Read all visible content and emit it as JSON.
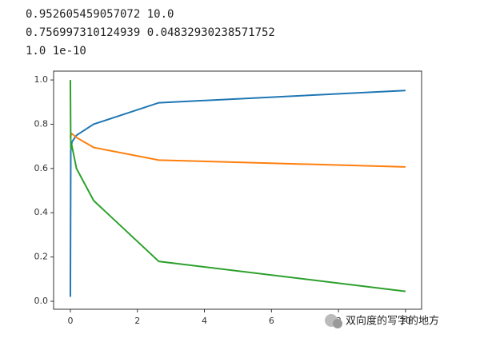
{
  "output_lines": [
    "0.952605459057072 10.0",
    "0.756997310124939 0.04832930238571752",
    "1.0 1e-10"
  ],
  "chart_data": {
    "type": "line",
    "x": [
      1e-10,
      0.0127,
      0.0483,
      0.183,
      0.695,
      2.64,
      10
    ],
    "series": [
      {
        "color": "#1f77b4",
        "values": [
          0.02,
          0.68,
          0.72,
          0.75,
          0.8,
          0.897,
          0.9526
        ]
      },
      {
        "color": "#ff7f0e",
        "values": [
          0.74,
          0.75,
          0.757,
          0.74,
          0.695,
          0.638,
          0.607
        ]
      },
      {
        "color": "#2ca02c",
        "values": [
          1.0,
          0.69,
          0.7,
          0.6,
          0.455,
          0.18,
          0.045
        ]
      }
    ],
    "xlim": [
      -0.5,
      10.48
    ],
    "ylim": [
      -0.036,
      1.04
    ],
    "xticks": [
      0,
      2,
      4,
      6,
      8,
      10
    ],
    "yticks": [
      {
        "value": 0,
        "label": "0.0"
      },
      0.2,
      0.4,
      0.6,
      0.8,
      {
        "value": 1,
        "label": "1.0"
      }
    ]
  },
  "watermark": "双向度的写字的地方"
}
